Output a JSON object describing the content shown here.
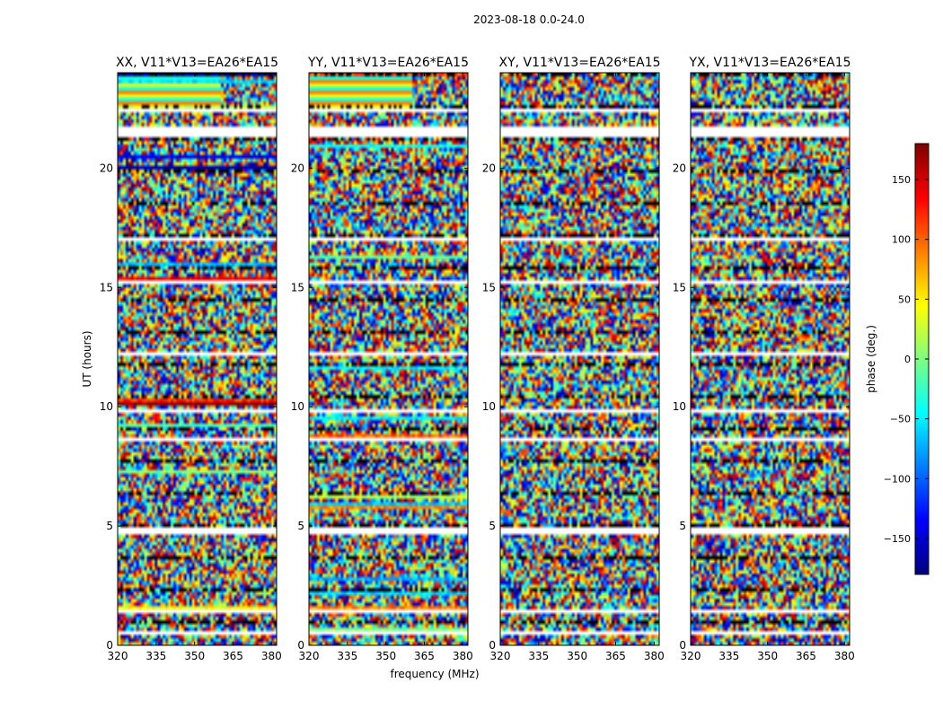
{
  "figure": {
    "suptitle": "2023-08-18 0.0-24.0",
    "ylabel": "UT (hours)",
    "xlabel": "frequency (MHz)"
  },
  "chart_data": {
    "type": "heatmap",
    "title": "2023-08-18 0.0-24.0",
    "xlabel": "frequency (MHz)",
    "ylabel": "UT (hours)",
    "xlim": [
      320,
      382
    ],
    "ylim": [
      0,
      24
    ],
    "xticks": [
      320,
      335,
      350,
      365,
      380
    ],
    "yticks": [
      0,
      5,
      10,
      15,
      20
    ],
    "panels": [
      {
        "title": "XX, V11*V13=EA26*EA15"
      },
      {
        "title": "YY, V11*V13=EA26*EA15"
      },
      {
        "title": "XY, V11*V13=EA26*EA15"
      },
      {
        "title": "YX, V11*V13=EA26*EA15"
      }
    ],
    "colorbar": {
      "label": "phase (deg.)",
      "range": [
        -180,
        180
      ],
      "ticks": [
        -150,
        -100,
        -50,
        0,
        50,
        100,
        150
      ],
      "colormap": "jet"
    },
    "flagged_ut_ranges": [
      [
        0.5,
        0.6
      ],
      [
        1.3,
        1.5
      ],
      [
        3.4,
        3.5
      ],
      [
        4.7,
        5.0
      ],
      [
        8.6,
        8.7
      ],
      [
        9.8,
        9.95
      ],
      [
        12.2,
        12.3
      ],
      [
        15.1,
        15.3
      ],
      [
        17.0,
        17.1
      ],
      [
        21.3,
        21.8
      ],
      [
        22.4,
        22.5
      ]
    ]
  }
}
